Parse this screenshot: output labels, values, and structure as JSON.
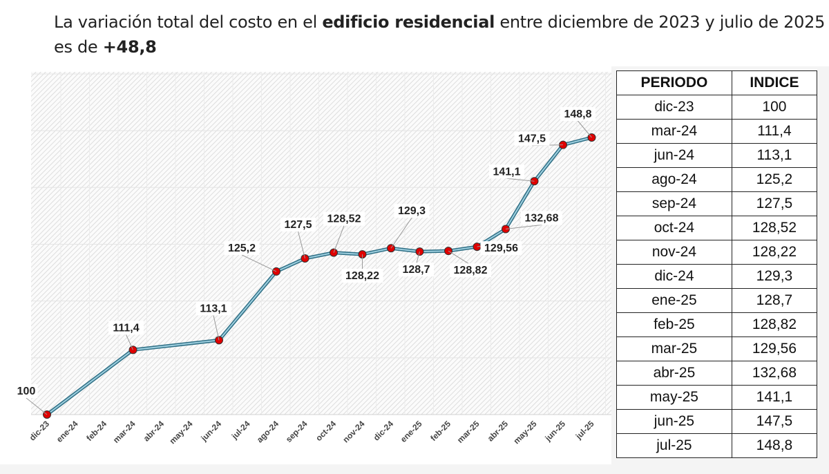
{
  "title": {
    "part1": "La variación total del costo en el ",
    "bold1": "edificio residencial",
    "part2": " entre diciembre de 2023 y julio de 2025 es de ",
    "bold2": "+48,8"
  },
  "colors": {
    "line": "#4a8fa8",
    "marker": "#e00000",
    "hatch": "#d8d8d8"
  },
  "chart_data": {
    "type": "line",
    "categories": [
      "dic-23",
      "ene-24",
      "feb-24",
      "mar-24",
      "abr-24",
      "may-24",
      "jun-24",
      "jul-24",
      "ago-24",
      "sep-24",
      "oct-24",
      "nov-24",
      "dic-24",
      "ene-25",
      "feb-25",
      "mar-25",
      "abr-25",
      "may-25",
      "jun-25",
      "jul-25"
    ],
    "points": [
      {
        "x": "dic-23",
        "y": 100,
        "label": "100"
      },
      {
        "x": "mar-24",
        "y": 111.4,
        "label": "111,4"
      },
      {
        "x": "jun-24",
        "y": 113.1,
        "label": "113,1"
      },
      {
        "x": "ago-24",
        "y": 125.2,
        "label": "125,2"
      },
      {
        "x": "sep-24",
        "y": 127.5,
        "label": "127,5"
      },
      {
        "x": "oct-24",
        "y": 128.52,
        "label": "128,52"
      },
      {
        "x": "nov-24",
        "y": 128.22,
        "label": "128,22"
      },
      {
        "x": "dic-24",
        "y": 129.3,
        "label": "129,3"
      },
      {
        "x": "ene-25",
        "y": 128.7,
        "label": "128,7"
      },
      {
        "x": "feb-25",
        "y": 128.82,
        "label": "128,82"
      },
      {
        "x": "mar-25",
        "y": 129.56,
        "label": "129,56"
      },
      {
        "x": "abr-25",
        "y": 132.68,
        "label": "132,68"
      },
      {
        "x": "may-25",
        "y": 141.1,
        "label": "141,1"
      },
      {
        "x": "jun-25",
        "y": 147.5,
        "label": "147,5"
      },
      {
        "x": "jul-25",
        "y": 148.8,
        "label": "148,8"
      }
    ],
    "ylim": [
      100,
      160
    ],
    "grid": true,
    "legend": "none"
  },
  "table": {
    "headers": [
      "PERIODO",
      "INDICE"
    ],
    "rows": [
      [
        "dic-23",
        "100"
      ],
      [
        "mar-24",
        "111,4"
      ],
      [
        "jun-24",
        "113,1"
      ],
      [
        "ago-24",
        "125,2"
      ],
      [
        "sep-24",
        "127,5"
      ],
      [
        "oct-24",
        "128,52"
      ],
      [
        "nov-24",
        "128,22"
      ],
      [
        "dic-24",
        "129,3"
      ],
      [
        "ene-25",
        "128,7"
      ],
      [
        "feb-25",
        "128,82"
      ],
      [
        "mar-25",
        "129,56"
      ],
      [
        "abr-25",
        "132,68"
      ],
      [
        "may-25",
        "141,1"
      ],
      [
        "jun-25",
        "147,5"
      ],
      [
        "jul-25",
        "148,8"
      ]
    ]
  }
}
